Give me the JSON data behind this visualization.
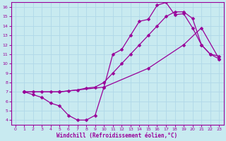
{
  "xlabel": "Windchill (Refroidissement éolien,°C)",
  "background_color": "#c8eaf0",
  "line_color": "#990099",
  "spine_color": "#660066",
  "xlim": [
    -0.5,
    23.5
  ],
  "ylim": [
    3.5,
    16.5
  ],
  "xticks": [
    0,
    1,
    2,
    3,
    4,
    5,
    6,
    7,
    8,
    9,
    10,
    11,
    12,
    13,
    14,
    15,
    16,
    17,
    18,
    19,
    20,
    21,
    22,
    23
  ],
  "yticks": [
    4,
    5,
    6,
    7,
    8,
    9,
    10,
    11,
    12,
    13,
    14,
    15,
    16
  ],
  "grid_color": "#b0d8e8",
  "line1_x": [
    1,
    2,
    3,
    4,
    5,
    6,
    7,
    8,
    9,
    10,
    11,
    12,
    13,
    14,
    15,
    16,
    17,
    18,
    19,
    20,
    21,
    22,
    23
  ],
  "line1_y": [
    7.0,
    6.7,
    6.4,
    5.8,
    5.5,
    4.5,
    4.0,
    4.0,
    4.5,
    7.5,
    11.0,
    11.5,
    13.0,
    14.5,
    14.7,
    16.2,
    16.5,
    15.2,
    15.3,
    13.8,
    12.0,
    11.0,
    10.8
  ],
  "line2_x": [
    1,
    2,
    3,
    4,
    5,
    6,
    7,
    8,
    9,
    10,
    11,
    12,
    13,
    14,
    15,
    16,
    17,
    18,
    19,
    20,
    21,
    22,
    23
  ],
  "line2_y": [
    7.0,
    7.0,
    7.0,
    7.0,
    7.0,
    7.1,
    7.2,
    7.4,
    7.5,
    8.0,
    9.0,
    10.0,
    11.0,
    12.0,
    13.0,
    14.0,
    15.0,
    15.5,
    15.5,
    14.8,
    12.0,
    11.0,
    10.5
  ],
  "line3_x": [
    1,
    5,
    10,
    15,
    19,
    21,
    23
  ],
  "line3_y": [
    7.0,
    7.0,
    7.5,
    9.5,
    12.0,
    13.8,
    10.5
  ]
}
